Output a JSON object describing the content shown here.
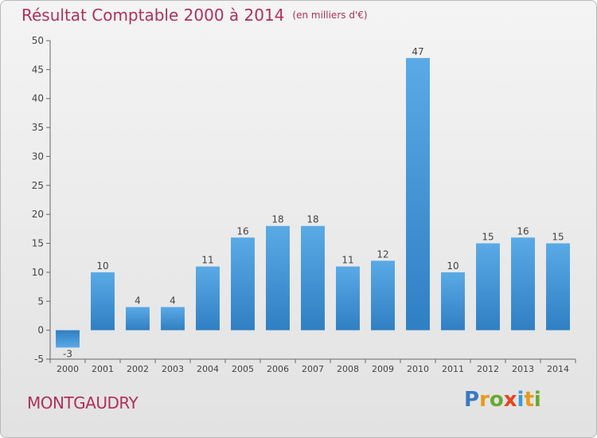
{
  "chart_data": {
    "type": "bar",
    "title": "Résultat Comptable 2000 à 2014",
    "subtitle": "(en milliers d'€)",
    "xlabel": "",
    "ylabel": "",
    "categories": [
      "2000",
      "2001",
      "2002",
      "2003",
      "2004",
      "2005",
      "2006",
      "2007",
      "2008",
      "2009",
      "2010",
      "2011",
      "2012",
      "2013",
      "2014"
    ],
    "values": [
      -3,
      10,
      4,
      4,
      11,
      16,
      18,
      18,
      11,
      12,
      47,
      10,
      15,
      16,
      15
    ],
    "ylim": [
      -5,
      50
    ],
    "yticks": [
      -5,
      0,
      5,
      10,
      15,
      20,
      25,
      30,
      35,
      40,
      45,
      50
    ],
    "grid": false,
    "bar_color": "#3d8fd3",
    "bar_color_light": "#5aaae6",
    "bar_color_dark": "#2f7fc3"
  },
  "commune": "MONTGAUDRY",
  "brand": {
    "letters": [
      "P",
      "r",
      "o",
      "x",
      "i",
      "t",
      "i"
    ],
    "colors": [
      "#3a78c2",
      "#e89a1c",
      "#6aa832",
      "#e8431c",
      "#3a9bd8",
      "#e89a1c",
      "#6aa832"
    ]
  },
  "colors": {
    "accent": "#b0305a"
  }
}
